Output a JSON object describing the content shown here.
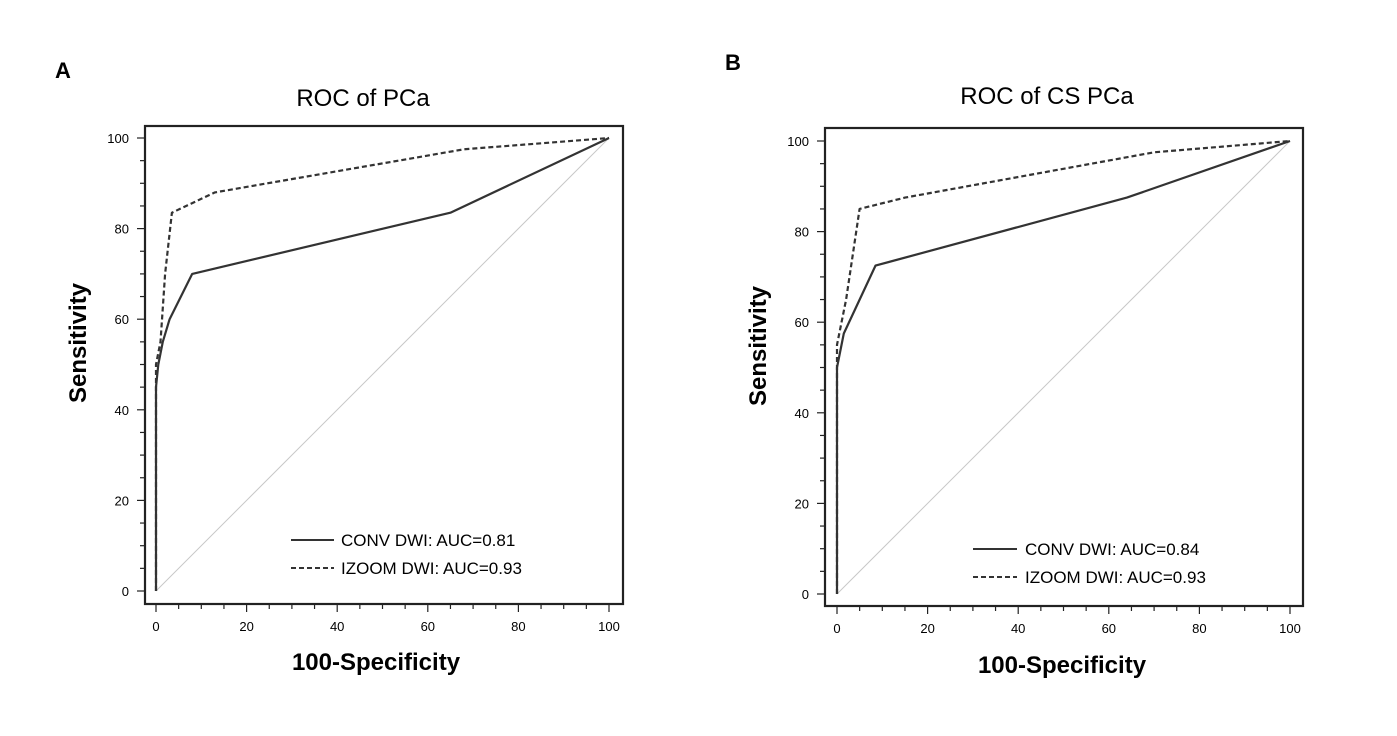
{
  "chart_data": [
    {
      "panel": "A",
      "type": "line",
      "title": "ROC of PCa",
      "xlabel": "100-Specificity",
      "ylabel": "Sensitivity",
      "xlim": [
        0,
        100
      ],
      "ylim": [
        0,
        100
      ],
      "xticks": [
        0,
        20,
        40,
        60,
        80,
        100
      ],
      "yticks": [
        0,
        20,
        40,
        60,
        80,
        100
      ],
      "reference_line": [
        [
          0,
          0
        ],
        [
          100,
          100
        ]
      ],
      "legend_position": "bottom-right",
      "series": [
        {
          "name": "CONV DWI: AUC=0.81",
          "style": "solid",
          "x": [
            0,
            0,
            0.5,
            1.5,
            3,
            8,
            65,
            100
          ],
          "y": [
            0,
            45,
            50,
            55,
            60,
            70,
            83.5,
            100
          ]
        },
        {
          "name": "IZOOM DWI: AUC=0.93",
          "style": "dashed",
          "x": [
            0,
            0,
            1,
            2,
            3.5,
            13,
            68,
            100
          ],
          "y": [
            0,
            50,
            55,
            70,
            83.5,
            88,
            97.5,
            100
          ]
        }
      ]
    },
    {
      "panel": "B",
      "type": "line",
      "title": "ROC of CS PCa",
      "xlabel": "100-Specificity",
      "ylabel": "Sensitivity",
      "xlim": [
        0,
        100
      ],
      "ylim": [
        0,
        100
      ],
      "xticks": [
        0,
        20,
        40,
        60,
        80,
        100
      ],
      "yticks": [
        0,
        20,
        40,
        60,
        80,
        100
      ],
      "reference_line": [
        [
          0,
          0
        ],
        [
          100,
          100
        ]
      ],
      "legend_position": "bottom-right",
      "series": [
        {
          "name": "CONV DWI: AUC=0.84",
          "style": "solid",
          "x": [
            0,
            0,
            1.5,
            8.5,
            64,
            100
          ],
          "y": [
            0,
            50,
            57.5,
            72.5,
            87.5,
            100
          ]
        },
        {
          "name": "IZOOM DWI: AUC=0.93",
          "style": "dashed",
          "x": [
            0,
            0,
            2,
            5,
            15,
            70,
            100
          ],
          "y": [
            0,
            55,
            65,
            85,
            87.5,
            97.5,
            100
          ]
        }
      ]
    }
  ]
}
